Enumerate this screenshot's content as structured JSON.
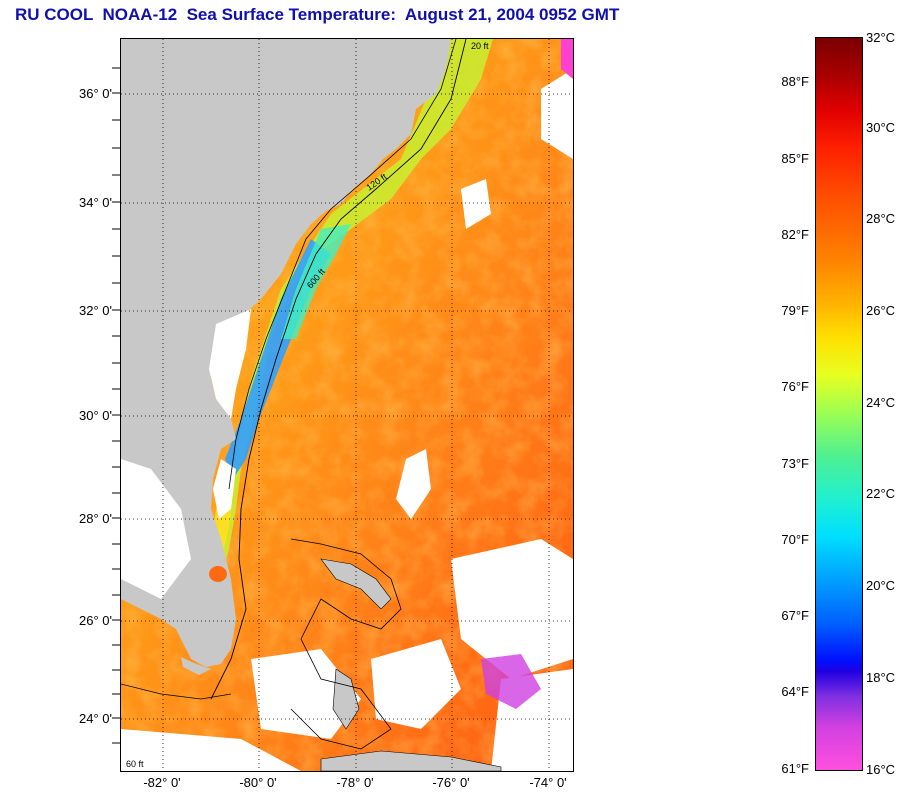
{
  "title": "RU COOL  NOAA-12  Sea Surface Temperature:  August 21, 2004 0952 GMT",
  "lat_ticks": [
    "36° 0'",
    "34° 0'",
    "32° 0'",
    "30° 0'",
    "28° 0'",
    "26° 0'",
    "24° 0'"
  ],
  "lon_ticks": [
    "-82° 0'",
    "-80° 0'",
    "-78° 0'",
    "-76° 0'",
    "-74° 0'"
  ],
  "colorbar": {
    "celsius": [
      "32°C",
      "30°C",
      "28°C",
      "26°C",
      "24°C",
      "22°C",
      "20°C",
      "18°C",
      "16°C"
    ],
    "fahrenheit": [
      "88°F",
      "85°F",
      "82°F",
      "79°F",
      "76°F",
      "73°F",
      "70°F",
      "67°F",
      "64°F",
      "61°F"
    ]
  },
  "depth_contours": [
    "20 ft",
    "120 ft",
    "600 ft",
    "60 ft"
  ],
  "colors": {
    "title": "#1010b0",
    "land": "#c8c8c8",
    "cloud": "#ffffff",
    "warm_water": "#ff7a20",
    "shelf_water": "#ffd020"
  }
}
